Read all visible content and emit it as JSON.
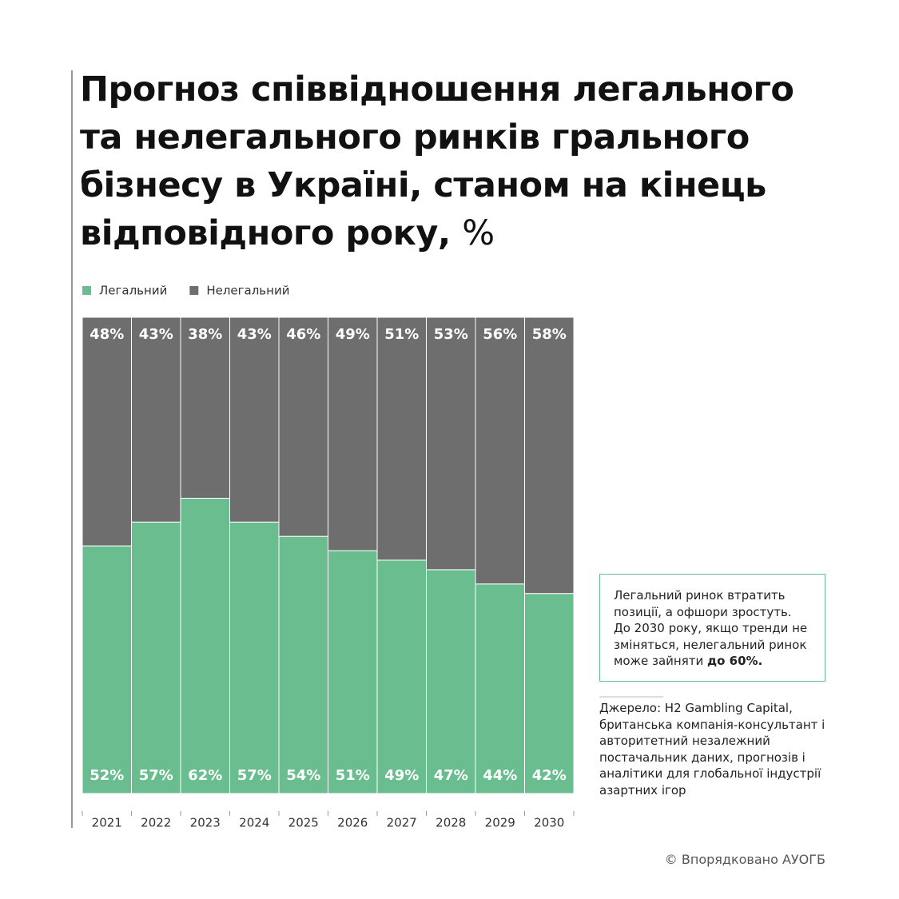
{
  "chart_data": {
    "type": "stacked_bar",
    "title": "Прогноз співвідношення легального та нелегального ринків грального бізнесу в Україні, станом на кінець відповідного року,",
    "title_unit": "%",
    "categories": [
      "2021",
      "2022",
      "2023",
      "2024",
      "2025",
      "2026",
      "2027",
      "2028",
      "2029",
      "2030"
    ],
    "series": [
      {
        "name": "Легальний",
        "color": "#6abd8f",
        "values": [
          52,
          57,
          62,
          57,
          54,
          51,
          49,
          47,
          44,
          42
        ],
        "value_labels": [
          "52%",
          "57%",
          "62%",
          "57%",
          "54%",
          "51%",
          "49%",
          "47%",
          "44%",
          "42%"
        ]
      },
      {
        "name": "Нелегальний",
        "color": "#6e6e6e",
        "values": [
          48,
          43,
          38,
          43,
          46,
          49,
          51,
          53,
          56,
          58
        ],
        "value_labels": [
          "48%",
          "43%",
          "38%",
          "43%",
          "46%",
          "49%",
          "51%",
          "53%",
          "56%",
          "58%"
        ]
      }
    ],
    "ylim": [
      0,
      100
    ],
    "annotation": "Легальний ринок втратить позиції, а офшори зростуть. До 2030 року, якщо тренди не зміняться, нелегальний ринок може зайняти",
    "annotation_bold": "до 60%.",
    "source": "Джерело: H2 Gambling Capital, британська компанія-консультант і авторитетний незалежний постачальник даних, прогнозів і аналітики для глобальної індустрії азартних ігор",
    "credit": "© Впорядковано АУОГБ"
  }
}
